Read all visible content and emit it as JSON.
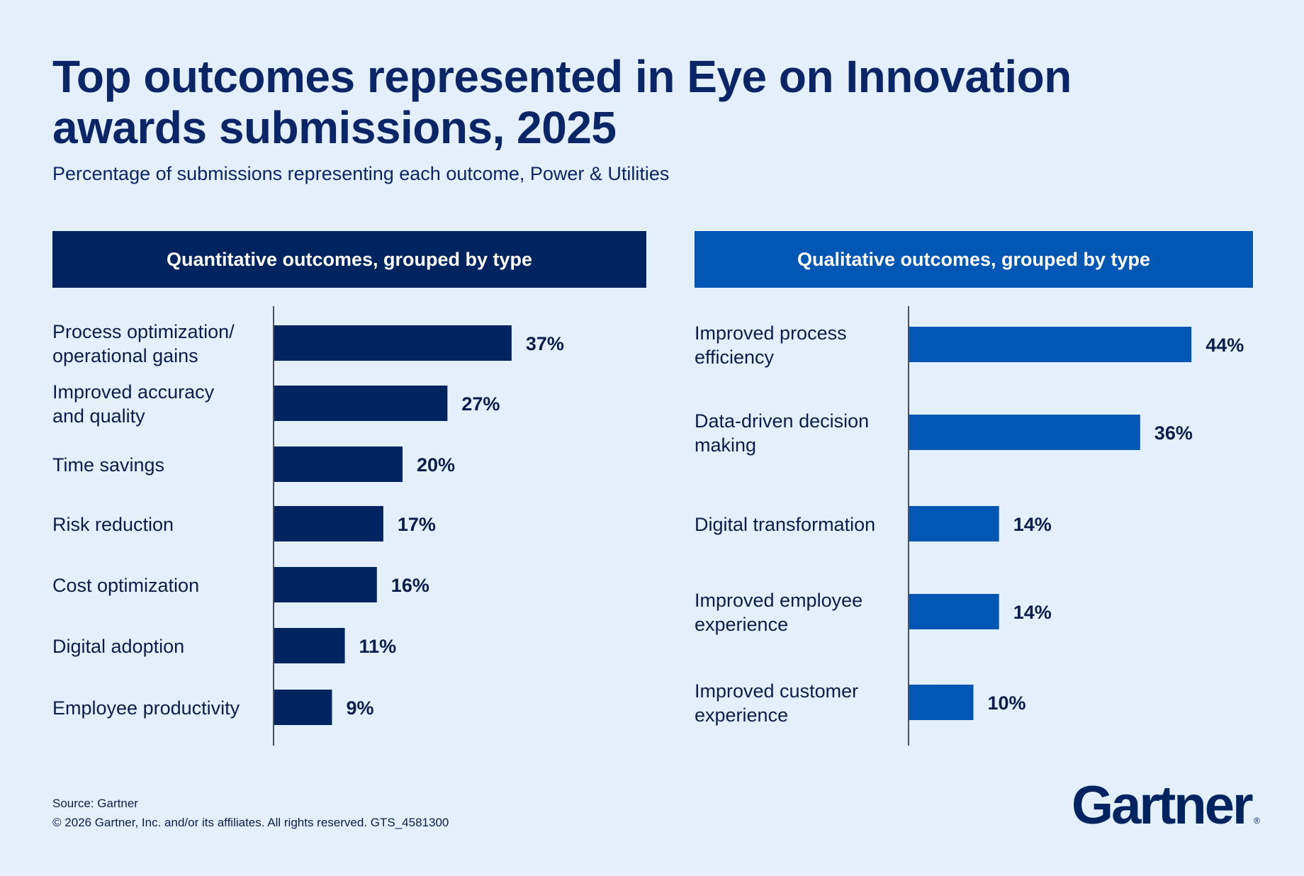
{
  "title": "Top outcomes represented in Eye on Innovation awards submissions, 2025",
  "subtitle": "Percentage of submissions representing each outcome, Power & Utilities",
  "colors": {
    "background": "#e3f0fc",
    "quantitative": "#002460",
    "qualitative": "#0257b5",
    "text": "#0b1d4a"
  },
  "chart_data": [
    {
      "type": "bar",
      "orientation": "horizontal",
      "title": "Quantitative outcomes, grouped by type",
      "categories": [
        [
          "Process optimization/",
          "operational gains"
        ],
        [
          "Improved accuracy",
          "and quality"
        ],
        [
          "Time savings"
        ],
        [
          "Risk reduction"
        ],
        [
          "Cost optimization"
        ],
        [
          "Digital adoption"
        ],
        [
          "Employee productivity"
        ]
      ],
      "values": [
        37,
        27,
        20,
        17,
        16,
        11,
        9
      ],
      "value_labels": [
        "37%",
        "27%",
        "20%",
        "17%",
        "16%",
        "11%",
        "9%"
      ],
      "unit": "%",
      "color": "#002460"
    },
    {
      "type": "bar",
      "orientation": "horizontal",
      "title": "Qualitative outcomes, grouped by type",
      "categories": [
        [
          "Improved process",
          "efficiency"
        ],
        [
          "Data-driven decision",
          "making"
        ],
        [
          "Digital transformation"
        ],
        [
          "Improved employee",
          "experience"
        ],
        [
          "Improved customer",
          "experience"
        ]
      ],
      "values": [
        44,
        36,
        14,
        14,
        10
      ],
      "value_labels": [
        "44%",
        "36%",
        "14%",
        "14%",
        "10%"
      ],
      "unit": "%",
      "color": "#0257b5"
    }
  ],
  "footer": {
    "source": "Source: Gartner",
    "copyright": "© 2026 Gartner, Inc. and/or its affiliates. All rights reserved. GTS_4581300"
  },
  "logo": {
    "text": "Gartner"
  }
}
